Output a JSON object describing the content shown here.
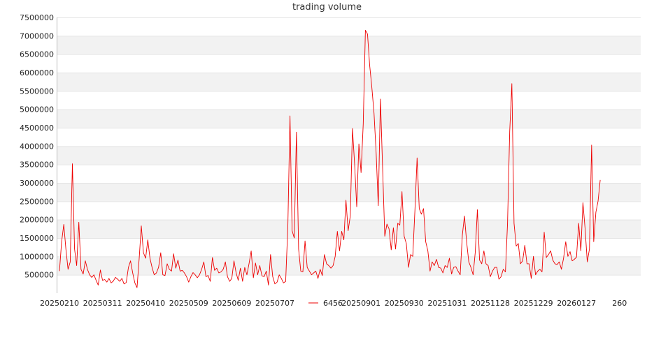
{
  "chart_data": {
    "type": "line",
    "title": "trading volume",
    "xlabel": "",
    "ylabel": "",
    "ylim": [
      0,
      7500000
    ],
    "yticks": [
      500000,
      1000000,
      1500000,
      2000000,
      2500000,
      3000000,
      3500000,
      4000000,
      4500000,
      5000000,
      5500000,
      6000000,
      6500000,
      7000000,
      7500000
    ],
    "ytick_labels": [
      "500000",
      "1000000",
      "1500000",
      "2000000",
      "2500000",
      "3000000",
      "3500000",
      "4000000",
      "4500000",
      "5000000",
      "5500000",
      "6000000",
      "6500000",
      "7000000",
      "7500000"
    ],
    "xtick_labels": [
      "20250210",
      "20250311",
      "20250410",
      "20250509",
      "20250609",
      "20250707",
      "20250901",
      "20250930",
      "20251031",
      "20251128",
      "20251229",
      "20260127",
      "260"
    ],
    "xtick_index": [
      0,
      20,
      40,
      60,
      80,
      100,
      140,
      160,
      180,
      200,
      220,
      240,
      260
    ],
    "x_index_max": 260,
    "grid": "horizontal bands",
    "band_color": "#f2f2f2",
    "line_color": "#ee0000",
    "legend": {
      "position": "bottom",
      "entries": [
        {
          "label": "6456",
          "color": "#ee0000"
        }
      ]
    },
    "series": [
      {
        "label": "6456",
        "values": [
          600000,
          1400000,
          1870000,
          1200000,
          650000,
          850000,
          3520000,
          1200000,
          750000,
          1930000,
          650000,
          520000,
          880000,
          650000,
          500000,
          430000,
          500000,
          350000,
          220000,
          630000,
          350000,
          370000,
          300000,
          400000,
          280000,
          330000,
          430000,
          380000,
          320000,
          400000,
          250000,
          290000,
          700000,
          880000,
          550000,
          280000,
          150000,
          950000,
          1830000,
          1100000,
          950000,
          1450000,
          950000,
          700000,
          500000,
          550000,
          700000,
          1100000,
          500000,
          480000,
          800000,
          650000,
          600000,
          1070000,
          680000,
          900000,
          600000,
          620000,
          550000,
          450000,
          300000,
          450000,
          560000,
          500000,
          420000,
          500000,
          650000,
          850000,
          450000,
          480000,
          320000,
          970000,
          620000,
          680000,
          550000,
          580000,
          650000,
          850000,
          450000,
          320000,
          400000,
          880000,
          550000,
          350000,
          680000,
          320000,
          700000,
          500000,
          800000,
          1150000,
          420000,
          820000,
          500000,
          750000,
          470000,
          450000,
          600000,
          220000,
          1050000,
          450000,
          250000,
          300000,
          500000,
          400000,
          280000,
          320000,
          1800000,
          4820000,
          1700000,
          1500000,
          4380000,
          1200000,
          600000,
          580000,
          1420000,
          700000,
          600000,
          500000,
          550000,
          600000,
          400000,
          650000,
          480000,
          1050000,
          800000,
          750000,
          680000,
          750000,
          1000000,
          1680000,
          1150000,
          1680000,
          1450000,
          2530000,
          1700000,
          2100000,
          4480000,
          3500000,
          2350000,
          4060000,
          3280000,
          4600000,
          7150000,
          7050000,
          6200000,
          5600000,
          4900000,
          3800000,
          2380000,
          5280000,
          3400000,
          1550000,
          1880000,
          1750000,
          1180000,
          1780000,
          1200000,
          1900000,
          1850000,
          2760000,
          1550000,
          1350000,
          700000,
          1050000,
          1000000,
          2250000,
          3680000,
          2300000,
          2150000,
          2300000,
          1400000,
          1150000,
          600000,
          850000,
          750000,
          920000,
          700000,
          680000,
          550000,
          750000,
          700000,
          950000,
          520000,
          700000,
          720000,
          600000,
          500000,
          1580000,
          2100000,
          1400000,
          850000,
          700000,
          500000,
          1100000,
          2270000,
          900000,
          800000,
          1150000,
          800000,
          750000,
          450000,
          600000,
          700000,
          700000,
          380000,
          450000,
          650000,
          580000,
          1900000,
          4400000,
          5700000,
          1900000,
          1280000,
          1350000,
          800000,
          880000,
          1300000,
          800000,
          800000,
          400000,
          1000000,
          500000,
          600000,
          650000,
          580000,
          1660000,
          970000,
          1050000,
          1150000,
          900000,
          800000,
          780000,
          850000,
          650000,
          950000,
          1400000,
          1000000,
          1130000,
          880000,
          920000,
          980000,
          1900000,
          1150000,
          2460000,
          1750000,
          850000,
          1200000,
          4030000,
          1400000,
          2200000,
          2500000,
          3080000
        ]
      }
    ]
  }
}
